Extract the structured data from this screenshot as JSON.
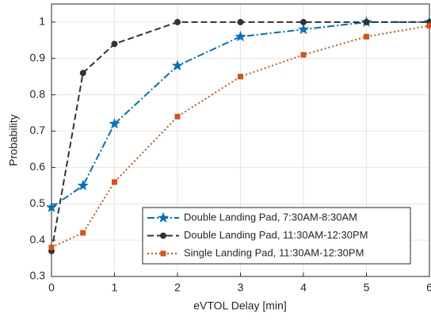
{
  "chart_data": {
    "type": "line",
    "x_label": "eVTOL Delay [min]",
    "y_label": "Probability",
    "x": [
      0,
      0.5,
      1,
      2,
      3,
      4,
      5,
      6
    ],
    "series": [
      {
        "name": "Double Landing Pad, 7:30AM-8:30AM",
        "color": "#0072bd",
        "dash": "dashdot",
        "marker": "star",
        "values": [
          0.49,
          0.55,
          0.72,
          0.88,
          0.96,
          0.98,
          1,
          1
        ]
      },
      {
        "name": "Double Landing Pad, 11:30AM-12:30PM",
        "color": "#333333",
        "dash": "dashed",
        "marker": "circle",
        "values": [
          0.37,
          0.86,
          0.94,
          1,
          1,
          1,
          1,
          1
        ]
      },
      {
        "name": "Single Landing Pad, 11:30AM-12:30PM",
        "color": "#d95319",
        "dash": "dotted",
        "marker": "square",
        "values": [
          0.38,
          0.42,
          0.56,
          0.74,
          0.85,
          0.91,
          0.96,
          0.99
        ]
      }
    ],
    "xlim": [
      0,
      6
    ],
    "xticks": [
      0,
      1,
      2,
      3,
      4,
      5,
      6
    ],
    "ylim": [
      0.3,
      1.05
    ],
    "yticks": [
      0.3,
      0.4,
      0.5,
      0.6,
      0.7,
      0.8,
      0.9,
      1
    ],
    "grid": true,
    "legend": "lower right"
  }
}
